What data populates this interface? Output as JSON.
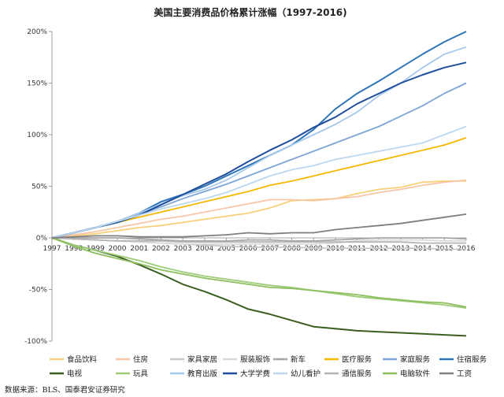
{
  "chart_data": {
    "type": "line",
    "title": "美国主要消费品价格累计涨幅（1997-2016)",
    "xlabel": "",
    "ylabel": "",
    "x": [
      "1997",
      "1998",
      "1999",
      "2000",
      "2001",
      "2002",
      "2003",
      "2004",
      "2005",
      "2006",
      "2007",
      "2008",
      "2009",
      "2010",
      "2011",
      "2012",
      "2013",
      "2014",
      "2015",
      "2016"
    ],
    "ylim": [
      -100,
      200
    ],
    "y_ticks": [
      -100,
      -50,
      0,
      50,
      100,
      150,
      200
    ],
    "y_tick_labels": [
      "-100%",
      "-50%",
      "0%",
      "50%",
      "100%",
      "150%",
      "200%"
    ],
    "grid": false,
    "legend_position": "bottom",
    "series": [
      {
        "name": "食品饮料",
        "color": "#f7d07a",
        "values": [
          0,
          2,
          4,
          7,
          10,
          12,
          15,
          18,
          21,
          24,
          29,
          36,
          37,
          38,
          43,
          47,
          49,
          54,
          55,
          55
        ]
      },
      {
        "name": "住房",
        "color": "#f6c6a6",
        "values": [
          0,
          3,
          6,
          10,
          14,
          18,
          21,
          25,
          29,
          33,
          37,
          37,
          36,
          38,
          40,
          44,
          47,
          51,
          54,
          56
        ]
      },
      {
        "name": "家具家居",
        "color": "#c8c8c8",
        "values": [
          0,
          -1,
          -2,
          -3,
          -4,
          -5,
          -6,
          -7,
          -8,
          -9,
          -9,
          -9,
          -10,
          -10,
          -10,
          -10,
          -10,
          -10,
          -11,
          -11
        ]
      },
      {
        "name": "服装服饰",
        "color": "#d9d9d9",
        "values": [
          0,
          -1,
          -2,
          -3,
          -4,
          -5,
          -6,
          -6,
          -6,
          -6,
          -6,
          -6,
          -6,
          -5,
          -3,
          -2,
          -2,
          -2,
          -3,
          -3
        ]
      },
      {
        "name": "新车",
        "color": "#a6a6a6",
        "values": [
          0,
          0,
          0,
          0,
          -1,
          -2,
          -3,
          -3,
          -3,
          -2,
          -2,
          -3,
          -3,
          -2,
          -1,
          0,
          0,
          0,
          0,
          -1
        ]
      },
      {
        "name": "医疗服务",
        "color": "#f5b800",
        "values": [
          0,
          5,
          10,
          15,
          20,
          25,
          30,
          35,
          40,
          45,
          51,
          55,
          60,
          65,
          70,
          75,
          80,
          85,
          90,
          97
        ]
      },
      {
        "name": "家庭服务",
        "color": "#7fa5d6",
        "values": [
          0,
          5,
          10,
          16,
          23,
          30,
          38,
          45,
          52,
          60,
          68,
          76,
          84,
          92,
          100,
          108,
          118,
          128,
          140,
          150
        ]
      },
      {
        "name": "住宿服务",
        "color": "#2e75b6",
        "values": [
          0,
          5,
          10,
          16,
          24,
          35,
          42,
          50,
          60,
          70,
          80,
          90,
          105,
          125,
          140,
          152,
          165,
          178,
          190,
          200
        ]
      },
      {
        "name": "电视",
        "color": "#3a5e1e",
        "values": [
          0,
          -7,
          -12,
          -18,
          -26,
          -35,
          -45,
          -52,
          -60,
          -69,
          -74,
          -80,
          -86,
          -88,
          -90,
          -91,
          -92,
          -93,
          -94,
          -95
        ]
      },
      {
        "name": "玩具",
        "color": "#9ccc78",
        "values": [
          0,
          -7,
          -12,
          -17,
          -22,
          -28,
          -33,
          -37,
          -40,
          -43,
          -46,
          -48,
          -51,
          -54,
          -57,
          -59,
          -61,
          -63,
          -65,
          -68
        ]
      },
      {
        "name": "教育出版",
        "color": "#a6c8ea",
        "values": [
          0,
          5,
          10,
          16,
          24,
          33,
          41,
          47,
          56,
          68,
          80,
          90,
          100,
          110,
          122,
          138,
          150,
          165,
          178,
          185
        ]
      },
      {
        "name": "大学学费",
        "color": "#1f4e9c",
        "values": [
          0,
          5,
          10,
          15,
          22,
          32,
          42,
          52,
          62,
          74,
          85,
          95,
          107,
          117,
          130,
          140,
          150,
          158,
          165,
          170
        ]
      },
      {
        "name": "幼儿看护",
        "color": "#bdd7ee",
        "values": [
          0,
          5,
          10,
          16,
          22,
          28,
          33,
          38,
          44,
          52,
          60,
          66,
          70,
          76,
          80,
          84,
          88,
          92,
          100,
          108
        ]
      },
      {
        "name": "通信服务",
        "color": "#b4b4b4",
        "values": [
          0,
          -1,
          -2,
          -3,
          -3,
          -3,
          -4,
          -4,
          -4,
          -4,
          -4,
          -4,
          -4,
          -4,
          -4,
          -4,
          -4,
          -5,
          -5,
          -5
        ]
      },
      {
        "name": "电脑软件",
        "color": "#8dbf5f",
        "values": [
          0,
          -8,
          -15,
          -20,
          -25,
          -31,
          -35,
          -39,
          -42,
          -45,
          -48,
          -49,
          -51,
          -53,
          -55,
          -58,
          -60,
          -62,
          -63,
          -67
        ]
      },
      {
        "name": "工资",
        "color": "#7f7f7f",
        "values": [
          0,
          1,
          2,
          2,
          1,
          1,
          1,
          2,
          3,
          5,
          4,
          5,
          5,
          8,
          10,
          12,
          14,
          17,
          20,
          23
        ]
      }
    ]
  },
  "source": "数据来源：BLS、国泰君安证券研究"
}
